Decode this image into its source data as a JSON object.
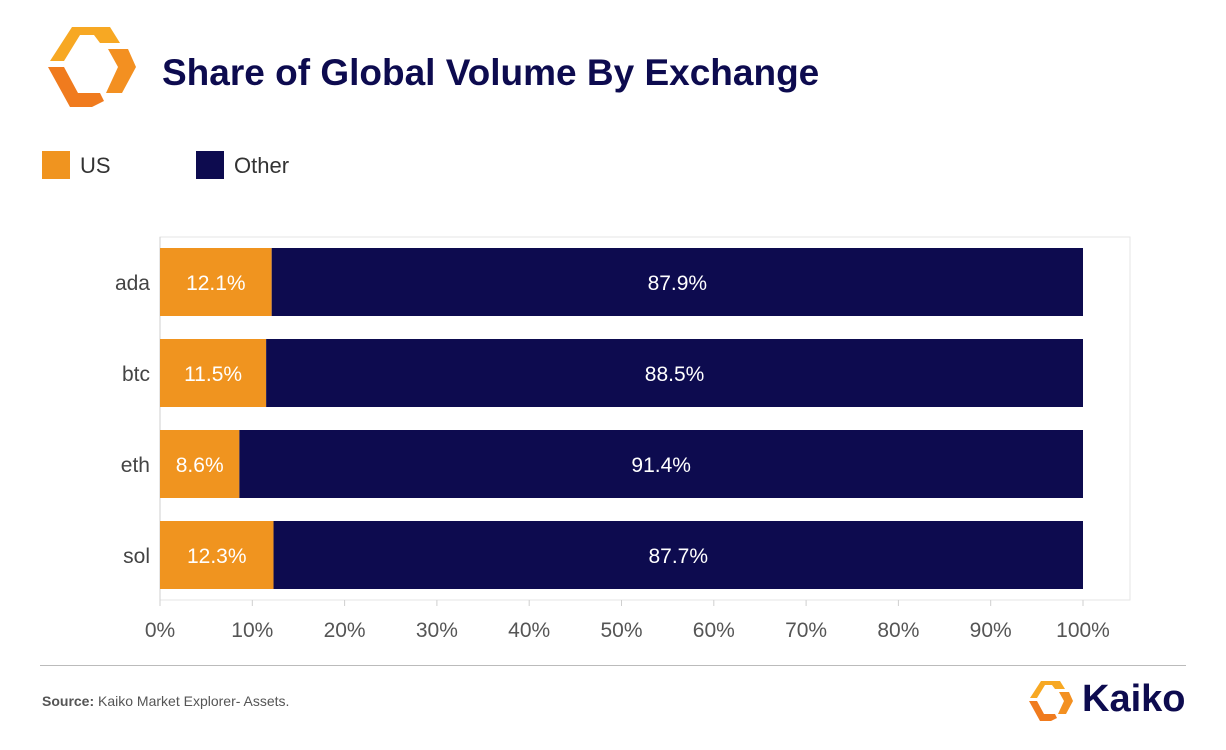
{
  "header": {
    "title": "Share of Global Volume By Exchange"
  },
  "legend": [
    {
      "label": "US",
      "color": "#f0941f"
    },
    {
      "label": "Other",
      "color": "#0d0b4f"
    }
  ],
  "chart_data": {
    "type": "bar",
    "orientation": "horizontal",
    "stacked": true,
    "categories": [
      "ada",
      "btc",
      "eth",
      "sol"
    ],
    "series": [
      {
        "name": "US",
        "color": "#f0941f",
        "values": [
          12.1,
          11.5,
          8.6,
          12.3
        ],
        "labels": [
          "12.1%",
          "11.5%",
          "8.6%",
          "12.3%"
        ]
      },
      {
        "name": "Other",
        "color": "#0d0b4f",
        "values": [
          87.9,
          88.5,
          91.4,
          87.7
        ],
        "labels": [
          "87.9%",
          "88.5%",
          "91.4%",
          "87.7%"
        ]
      }
    ],
    "x_ticks": [
      "0%",
      "10%",
      "20%",
      "30%",
      "40%",
      "50%",
      "60%",
      "70%",
      "80%",
      "90%",
      "100%"
    ],
    "xlim": [
      0,
      100
    ],
    "grid": false,
    "legend_position": "top-left"
  },
  "footer": {
    "source_label": "Source:",
    "source_text": "Kaiko Market Explorer- Assets.",
    "brand_name": "Kaiko"
  }
}
